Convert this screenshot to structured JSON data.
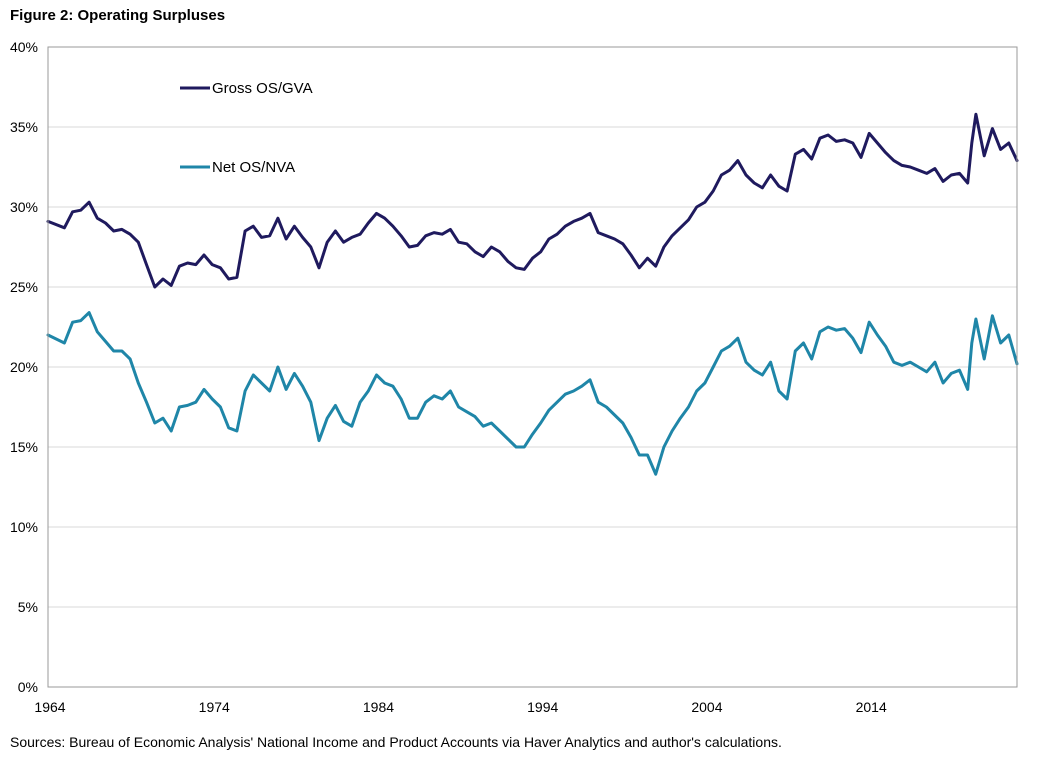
{
  "figure_title": "Figure 2: Operating Surpluses",
  "source_note": "Sources: Bureau of Economic Analysis' National Income and Product Accounts via Haver Analytics and author's calculations.",
  "chart_data": {
    "type": "line",
    "title": "Figure 2: Operating Surpluses",
    "xlabel": "",
    "ylabel": "",
    "xlim": [
      1964,
      2023
    ],
    "ylim": [
      0,
      40
    ],
    "x_ticks": [
      1964,
      1974,
      1984,
      1994,
      2004,
      2014
    ],
    "y_ticks": [
      {
        "value": 0,
        "label": "0%"
      },
      {
        "value": 5,
        "label": "5%"
      },
      {
        "value": 10,
        "label": "10%"
      },
      {
        "value": 15,
        "label": "15%"
      },
      {
        "value": 20,
        "label": "20%"
      },
      {
        "value": 25,
        "label": "25%"
      },
      {
        "value": 30,
        "label": "30%"
      },
      {
        "value": 35,
        "label": "35%"
      },
      {
        "value": 40,
        "label": "40%"
      }
    ],
    "grid": true,
    "legend_position": "top-left",
    "series": [
      {
        "name": "Gross OS/GVA",
        "color": "#1f1a5e",
        "x": [
          1964,
          1965,
          1965.5,
          1966,
          1966.5,
          1967,
          1967.5,
          1968,
          1968.5,
          1969,
          1969.5,
          1970,
          1970.5,
          1971,
          1971.5,
          1972,
          1972.5,
          1973,
          1973.5,
          1974,
          1974.5,
          1975,
          1975.5,
          1976,
          1976.5,
          1977,
          1977.5,
          1978,
          1978.5,
          1979,
          1979.5,
          1980,
          1980.5,
          1981,
          1981.5,
          1982,
          1982.5,
          1983,
          1983.5,
          1984,
          1984.5,
          1985,
          1985.5,
          1986,
          1986.5,
          1987,
          1987.5,
          1988,
          1988.5,
          1989,
          1989.5,
          1990,
          1990.5,
          1991,
          1991.5,
          1992,
          1992.5,
          1993,
          1993.5,
          1994,
          1994.5,
          1995,
          1995.5,
          1996,
          1996.5,
          1997,
          1997.5,
          1998,
          1998.5,
          1999,
          1999.5,
          2000,
          2000.5,
          2001,
          2001.5,
          2002,
          2002.5,
          2003,
          2003.5,
          2004,
          2004.5,
          2005,
          2005.5,
          2006,
          2006.5,
          2007,
          2007.5,
          2008,
          2008.5,
          2009,
          2009.5,
          2010,
          2010.5,
          2011,
          2011.5,
          2012,
          2012.5,
          2013,
          2013.5,
          2014,
          2014.5,
          2015,
          2015.5,
          2016,
          2016.5,
          2017,
          2017.5,
          2018,
          2018.5,
          2019,
          2019.5,
          2020,
          2020.25,
          2020.5,
          2021,
          2021.5,
          2022,
          2022.5,
          2023
        ],
        "values": [
          29.1,
          28.7,
          29.7,
          29.8,
          30.3,
          29.3,
          29.0,
          28.5,
          28.6,
          28.3,
          27.8,
          26.4,
          25.0,
          25.5,
          25.1,
          26.3,
          26.5,
          26.4,
          27.0,
          26.4,
          26.2,
          25.5,
          25.6,
          28.5,
          28.8,
          28.1,
          28.2,
          29.3,
          28.0,
          28.8,
          28.1,
          27.5,
          26.2,
          27.8,
          28.5,
          27.8,
          28.1,
          28.3,
          29.0,
          29.6,
          29.3,
          28.8,
          28.2,
          27.5,
          27.6,
          28.2,
          28.4,
          28.3,
          28.6,
          27.8,
          27.7,
          27.2,
          26.9,
          27.5,
          27.2,
          26.6,
          26.2,
          26.1,
          26.8,
          27.2,
          28.0,
          28.3,
          28.8,
          29.1,
          29.3,
          29.6,
          28.4,
          28.2,
          28.0,
          27.7,
          27.0,
          26.2,
          26.8,
          26.3,
          27.5,
          28.2,
          28.7,
          29.2,
          30.0,
          30.3,
          31.0,
          32.0,
          32.3,
          32.9,
          32.0,
          31.5,
          31.2,
          32.0,
          31.3,
          31.0,
          33.3,
          33.6,
          33.0,
          34.3,
          34.5,
          34.1,
          34.2,
          34.0,
          33.1,
          34.6,
          34.0,
          33.4,
          32.9,
          32.6,
          32.5,
          32.3,
          32.1,
          32.4,
          31.6,
          32.0,
          32.1,
          31.5,
          34.0,
          35.8,
          33.2,
          34.9,
          33.6,
          34.0,
          32.9
        ]
      },
      {
        "name": "Net OS/NVA",
        "color": "#1f86a8",
        "x": [
          1964,
          1965,
          1965.5,
          1966,
          1966.5,
          1967,
          1967.5,
          1968,
          1968.5,
          1969,
          1969.5,
          1970,
          1970.5,
          1971,
          1971.5,
          1972,
          1972.5,
          1973,
          1973.5,
          1974,
          1974.5,
          1975,
          1975.5,
          1976,
          1976.5,
          1977,
          1977.5,
          1978,
          1978.5,
          1979,
          1979.5,
          1980,
          1980.5,
          1981,
          1981.5,
          1982,
          1982.5,
          1983,
          1983.5,
          1984,
          1984.5,
          1985,
          1985.5,
          1986,
          1986.5,
          1987,
          1987.5,
          1988,
          1988.5,
          1989,
          1989.5,
          1990,
          1990.5,
          1991,
          1991.5,
          1992,
          1992.5,
          1993,
          1993.5,
          1994,
          1994.5,
          1995,
          1995.5,
          1996,
          1996.5,
          1997,
          1997.5,
          1998,
          1998.5,
          1999,
          1999.5,
          2000,
          2000.5,
          2001,
          2001.5,
          2002,
          2002.5,
          2003,
          2003.5,
          2004,
          2004.5,
          2005,
          2005.5,
          2006,
          2006.5,
          2007,
          2007.5,
          2008,
          2008.5,
          2009,
          2009.5,
          2010,
          2010.5,
          2011,
          2011.5,
          2012,
          2012.5,
          2013,
          2013.5,
          2014,
          2014.5,
          2015,
          2015.5,
          2016,
          2016.5,
          2017,
          2017.5,
          2018,
          2018.5,
          2019,
          2019.5,
          2020,
          2020.25,
          2020.5,
          2021,
          2021.5,
          2022,
          2022.5,
          2023
        ],
        "values": [
          22.0,
          21.5,
          22.8,
          22.9,
          23.4,
          22.2,
          21.6,
          21.0,
          21.0,
          20.5,
          19.0,
          17.8,
          16.5,
          16.8,
          16.0,
          17.5,
          17.6,
          17.8,
          18.6,
          18.0,
          17.5,
          16.2,
          16.0,
          18.5,
          19.5,
          19.0,
          18.5,
          20.0,
          18.6,
          19.6,
          18.8,
          17.8,
          15.4,
          16.8,
          17.6,
          16.6,
          16.3,
          17.8,
          18.5,
          19.5,
          19.0,
          18.8,
          18.0,
          16.8,
          16.8,
          17.8,
          18.2,
          18.0,
          18.5,
          17.5,
          17.2,
          16.9,
          16.3,
          16.5,
          16.0,
          15.5,
          15.0,
          15.0,
          15.8,
          16.5,
          17.3,
          17.8,
          18.3,
          18.5,
          18.8,
          19.2,
          17.8,
          17.5,
          17.0,
          16.5,
          15.6,
          14.5,
          14.5,
          13.3,
          15.0,
          16.0,
          16.8,
          17.5,
          18.5,
          19.0,
          20.0,
          21.0,
          21.3,
          21.8,
          20.3,
          19.8,
          19.5,
          20.3,
          18.5,
          18.0,
          21.0,
          21.5,
          20.5,
          22.2,
          22.5,
          22.3,
          22.4,
          21.8,
          20.9,
          22.8,
          22.0,
          21.3,
          20.3,
          20.1,
          20.3,
          20.0,
          19.7,
          20.3,
          19.0,
          19.6,
          19.8,
          18.6,
          21.5,
          23.0,
          20.5,
          23.2,
          21.5,
          22.0,
          20.2
        ]
      }
    ]
  }
}
